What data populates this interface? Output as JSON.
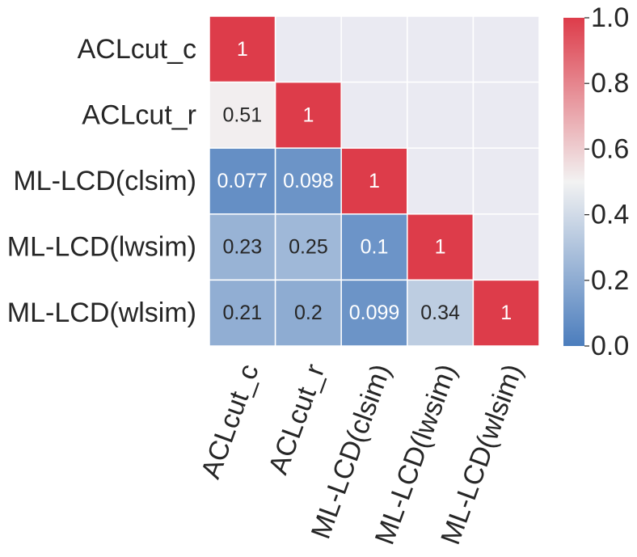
{
  "chart_data": {
    "type": "heatmap",
    "mask": "upper-triangle",
    "row_labels": [
      "ACLcut_c",
      "ACLcut_r",
      "ML-LCD(clsim)",
      "ML-LCD(lwsim)",
      "ML-LCD(wlsim)"
    ],
    "col_labels": [
      "ACLcut_c",
      "ACLcut_r",
      "ML-LCD(clsim)",
      "ML-LCD(lwsim)",
      "ML-LCD(wlsim)"
    ],
    "values": [
      [
        1,
        null,
        null,
        null,
        null
      ],
      [
        0.51,
        1,
        null,
        null,
        null
      ],
      [
        0.077,
        0.098,
        1,
        null,
        null
      ],
      [
        0.23,
        0.25,
        0.1,
        1,
        null
      ],
      [
        0.21,
        0.2,
        0.099,
        0.34,
        1
      ]
    ],
    "value_labels": [
      [
        "1",
        "",
        "",
        "",
        ""
      ],
      [
        "0.51",
        "1",
        "",
        "",
        ""
      ],
      [
        "0.077",
        "0.098",
        "1",
        "",
        ""
      ],
      [
        "0.23",
        "0.25",
        "0.1",
        "1",
        ""
      ],
      [
        "0.21",
        "0.2",
        "0.099",
        "0.34",
        "1"
      ]
    ],
    "vmin": 0.0,
    "vmax": 1.0,
    "colormap": "diverging blue-white-red",
    "colors": {
      "low": "#4b7dbd",
      "mid": "#f2f2f2",
      "high": "#dd3c4a",
      "masked": "#eaeaf2",
      "grid": "#ffffff",
      "text_dark": "#262626",
      "text_light": "#ffffff"
    },
    "colorbar": {
      "ticks": [
        0.0,
        0.2,
        0.4,
        0.6,
        0.8,
        1.0
      ],
      "tick_labels": [
        "0.0",
        "0.2",
        "0.4",
        "0.6",
        "0.8",
        "1.0"
      ]
    },
    "x_tick_rotation": "rotated ~70 degrees"
  }
}
